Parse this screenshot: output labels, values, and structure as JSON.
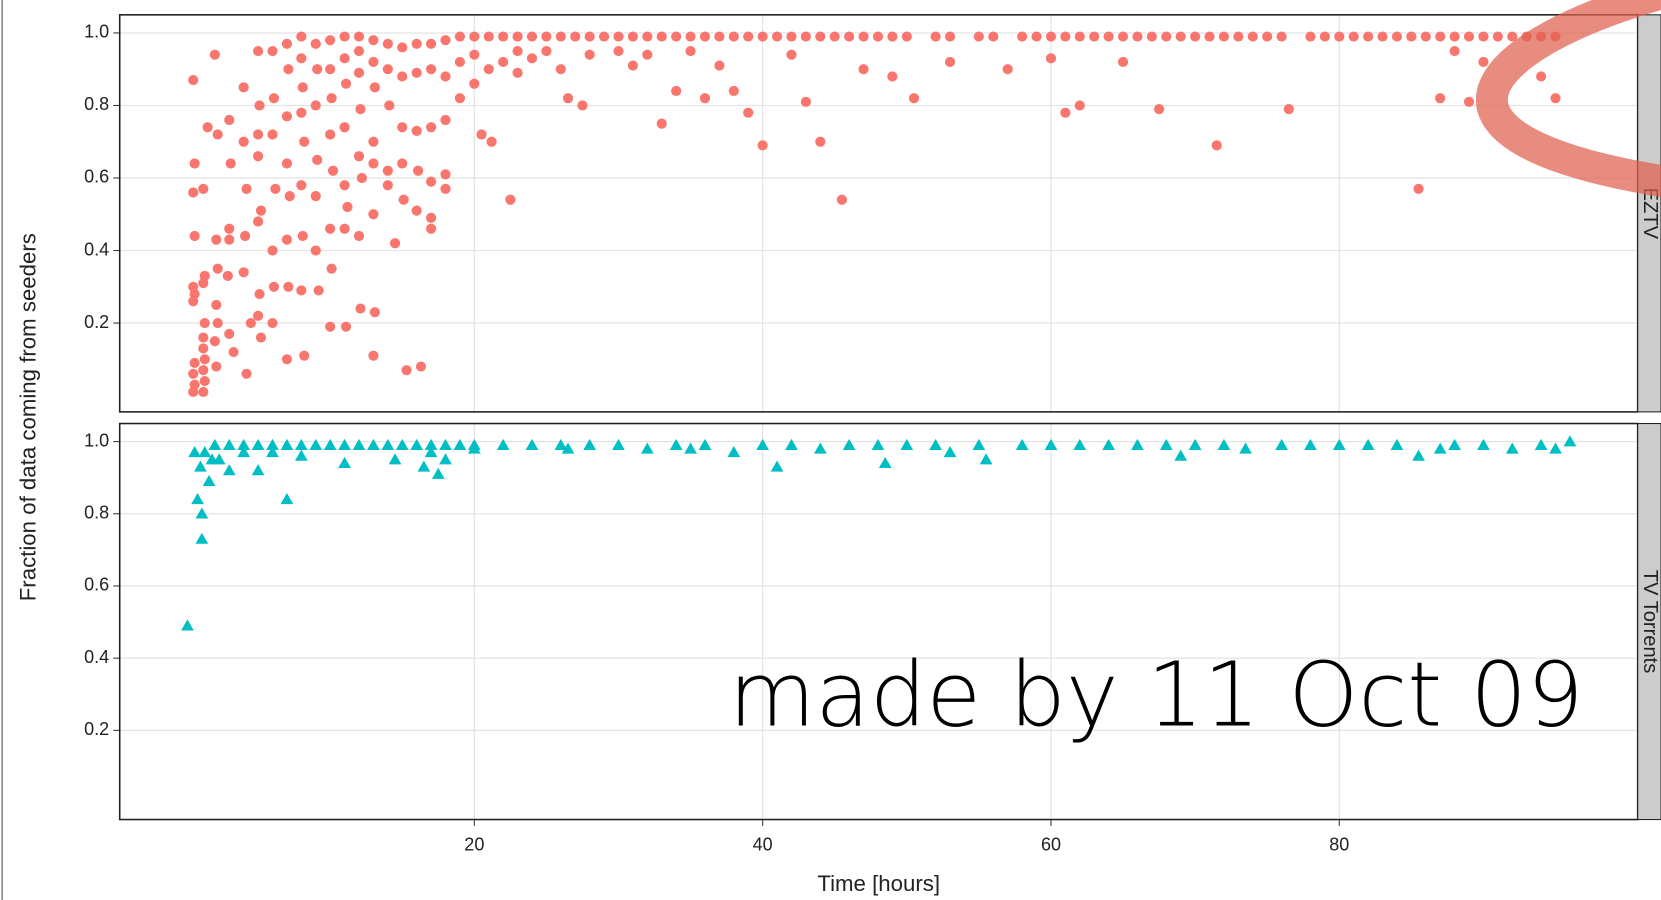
{
  "chart_data": [
    {
      "type": "scatter",
      "panel_label": "EZTV",
      "ylabel": "Fraction of data coming from seeders",
      "marker": "circle",
      "color": "#F8766D",
      "ylim": [
        -0.045,
        1.05
      ],
      "yticks": [
        0.2,
        0.4,
        0.6,
        0.8,
        {
          "value": 1,
          "label": "1.0"
        }
      ],
      "grid": true,
      "x": [
        0.5,
        0.6,
        0.5,
        0.6,
        0.5,
        0.6,
        0.5,
        0.6,
        0.5,
        0.6,
        0.5,
        1.2,
        1.3,
        1.2,
        1.3,
        1.2,
        1.2,
        1.3,
        1.2,
        1.3,
        1.2,
        1.5,
        2,
        2.2,
        2.1,
        2.2,
        2.1,
        2.2,
        2,
        2.1,
        3,
        3.1,
        3,
        3,
        2.9,
        3,
        3.3,
        4,
        4,
        4.2,
        4.1,
        4,
        4.2,
        4.5,
        5,
        5.1,
        5,
        5,
        5.2,
        5,
        5.1,
        5,
        5.2,
        6,
        6.1,
        6,
        6.2,
        6,
        6.1,
        6,
        7,
        7.1,
        7,
        7,
        7.2,
        7,
        7.1,
        7,
        8,
        8,
        8.1,
        8,
        8.2,
        8,
        8.1,
        8,
        8.2,
        9,
        9.1,
        9,
        9.1,
        9,
        9,
        9.2,
        10,
        10,
        10.1,
        10,
        10.2,
        10,
        10.1,
        10,
        11,
        11,
        11.1,
        11,
        11,
        11.2,
        11,
        11.1,
        12,
        12,
        12,
        12.1,
        12,
        12.2,
        12,
        12.1,
        13,
        13,
        13.1,
        13,
        13,
        13,
        13.1,
        13,
        14,
        14,
        14.1,
        14,
        14,
        14.5,
        15,
        15,
        15,
        15,
        15.1,
        15.3,
        16,
        16,
        16,
        16.1,
        16,
        16.3,
        17,
        17,
        17,
        17,
        17,
        17,
        18,
        18,
        18,
        18,
        18,
        19,
        19,
        19,
        20,
        20,
        20,
        20.5,
        21,
        21,
        21.2,
        22,
        22,
        22.5,
        23,
        23,
        23,
        24,
        24,
        25,
        25,
        26,
        26,
        26.5,
        27,
        27.5,
        28,
        28,
        29,
        30,
        30,
        31,
        31,
        32,
        32,
        33,
        33,
        34,
        34,
        35,
        35,
        36,
        36,
        37,
        37,
        38,
        38,
        39,
        39,
        40,
        40,
        41,
        42,
        42,
        43,
        43,
        44,
        44,
        45,
        45.5,
        46,
        47,
        47,
        48,
        49,
        49,
        50,
        50.5,
        52,
        53,
        53,
        55,
        56,
        57,
        58,
        59,
        60,
        60,
        61,
        61,
        62,
        62,
        63,
        64,
        65,
        65,
        66,
        67,
        67.5,
        68,
        69,
        70,
        71,
        71.5,
        72,
        73,
        74,
        75,
        76,
        76.5,
        78,
        79,
        80,
        81,
        82,
        83,
        84,
        85,
        85.5,
        86,
        87,
        87,
        88,
        88,
        89,
        89,
        90,
        90,
        91,
        92,
        93,
        94,
        94,
        95,
        95
      ],
      "values": [
        0.87,
        0.64,
        0.56,
        0.44,
        0.3,
        0.28,
        0.26,
        0.09,
        0.06,
        0.03,
        0.01,
        0.57,
        0.33,
        0.31,
        0.2,
        0.16,
        0.13,
        0.1,
        0.07,
        0.04,
        0.01,
        0.74,
        0.94,
        0.72,
        0.43,
        0.35,
        0.25,
        0.2,
        0.15,
        0.08,
        0.76,
        0.64,
        0.46,
        0.43,
        0.33,
        0.17,
        0.12,
        0.85,
        0.7,
        0.57,
        0.44,
        0.34,
        0.06,
        0.2,
        0.95,
        0.8,
        0.72,
        0.66,
        0.51,
        0.48,
        0.28,
        0.22,
        0.16,
        0.95,
        0.82,
        0.72,
        0.57,
        0.4,
        0.3,
        0.2,
        0.97,
        0.9,
        0.77,
        0.64,
        0.55,
        0.43,
        0.3,
        0.1,
        0.99,
        0.93,
        0.85,
        0.78,
        0.7,
        0.58,
        0.44,
        0.29,
        0.11,
        0.97,
        0.9,
        0.8,
        0.65,
        0.55,
        0.4,
        0.29,
        0.98,
        0.9,
        0.82,
        0.72,
        0.62,
        0.46,
        0.35,
        0.19,
        0.99,
        0.93,
        0.86,
        0.74,
        0.58,
        0.52,
        0.46,
        0.19,
        0.99,
        0.95,
        0.89,
        0.79,
        0.66,
        0.6,
        0.44,
        0.24,
        0.98,
        0.92,
        0.85,
        0.7,
        0.64,
        0.5,
        0.23,
        0.11,
        0.97,
        0.9,
        0.8,
        0.62,
        0.58,
        0.42,
        0.96,
        0.88,
        0.74,
        0.64,
        0.54,
        0.07,
        0.97,
        0.89,
        0.73,
        0.62,
        0.51,
        0.08,
        0.97,
        0.9,
        0.74,
        0.59,
        0.49,
        0.46,
        0.98,
        0.88,
        0.76,
        0.61,
        0.57,
        0.99,
        0.92,
        0.82,
        0.99,
        0.94,
        0.86,
        0.72,
        0.99,
        0.9,
        0.7,
        0.99,
        0.92,
        0.54,
        0.99,
        0.95,
        0.89,
        0.99,
        0.93,
        0.99,
        0.95,
        0.99,
        0.9,
        0.82,
        0.99,
        0.8,
        0.99,
        0.94,
        0.99,
        0.99,
        0.95,
        0.99,
        0.91,
        0.99,
        0.94,
        0.99,
        0.75,
        0.99,
        0.84,
        0.99,
        0.95,
        0.99,
        0.82,
        0.99,
        0.91,
        0.99,
        0.84,
        0.99,
        0.78,
        0.99,
        0.69,
        0.99,
        0.99,
        0.94,
        0.99,
        0.81,
        0.99,
        0.7,
        0.99,
        0.54,
        0.99,
        0.99,
        0.9,
        0.99,
        0.99,
        0.88,
        0.99,
        0.82,
        0.99,
        0.99,
        0.92,
        0.99,
        0.99,
        0.9,
        0.99,
        0.99,
        0.99,
        0.93,
        0.99,
        0.78,
        0.99,
        0.8,
        0.99,
        0.99,
        0.99,
        0.92,
        0.99,
        0.99,
        0.79,
        0.99,
        0.99,
        0.99,
        0.99,
        0.69,
        0.99,
        0.99,
        0.99,
        0.99,
        0.99,
        0.79,
        0.99,
        0.99,
        0.99,
        0.99,
        0.99,
        0.99,
        0.99,
        0.99,
        0.57,
        0.99,
        0.99,
        0.82,
        0.99,
        0.95,
        0.99,
        0.81,
        0.99,
        0.92,
        0.99,
        0.99,
        0.99,
        0.99,
        0.88,
        0.99,
        0.82
      ]
    },
    {
      "type": "scatter",
      "panel_label": "TV Torrents",
      "xlabel": "Time [hours]",
      "annotation": "made by 11 Oct 09",
      "marker": "triangle",
      "color": "#00BFC4",
      "xlim": [
        -4.6,
        100.7
      ],
      "xticks": [
        20,
        40,
        60,
        80
      ],
      "ylim": [
        -0.047,
        1.05
      ],
      "yticks": [
        0.2,
        0.4,
        0.6,
        0.8,
        {
          "value": 1,
          "label": "1.0"
        }
      ],
      "grid": true,
      "x": [
        0.1,
        0.6,
        0.8,
        1,
        1.1,
        1.1,
        1.3,
        1.6,
        1.8,
        2,
        2.3,
        3,
        3,
        4,
        4,
        5,
        5,
        6,
        6,
        7,
        7,
        8,
        8,
        9,
        10,
        11,
        11,
        12,
        13,
        14,
        14.5,
        15,
        16,
        16.5,
        17,
        17,
        17.5,
        18,
        18,
        19,
        20,
        20,
        22,
        24,
        26,
        26.5,
        28,
        30,
        32,
        34,
        35,
        36,
        38,
        40,
        41,
        42,
        44,
        46,
        48,
        48.5,
        50,
        52,
        53,
        55,
        55.5,
        58,
        60,
        62,
        64,
        66,
        68,
        69,
        70,
        72,
        73.5,
        76,
        78,
        80,
        82,
        84,
        85.5,
        87,
        88,
        90,
        92,
        94,
        95,
        96
      ],
      "values": [
        0.49,
        0.97,
        0.84,
        0.93,
        0.8,
        0.73,
        0.97,
        0.89,
        0.95,
        0.99,
        0.95,
        0.92,
        0.99,
        0.99,
        0.97,
        0.99,
        0.92,
        0.99,
        0.97,
        0.84,
        0.99,
        0.99,
        0.96,
        0.99,
        0.99,
        0.94,
        0.99,
        0.99,
        0.99,
        0.99,
        0.95,
        0.99,
        0.99,
        0.93,
        0.99,
        0.97,
        0.91,
        0.99,
        0.95,
        0.99,
        0.99,
        0.98,
        0.99,
        0.99,
        0.99,
        0.98,
        0.99,
        0.99,
        0.98,
        0.99,
        0.98,
        0.99,
        0.97,
        0.99,
        0.93,
        0.99,
        0.98,
        0.99,
        0.99,
        0.94,
        0.99,
        0.99,
        0.97,
        0.99,
        0.95,
        0.99,
        0.99,
        0.99,
        0.99,
        0.99,
        0.99,
        0.96,
        0.99,
        0.99,
        0.98,
        0.99,
        0.99,
        0.99,
        0.99,
        0.99,
        0.96,
        0.98,
        0.99,
        0.99,
        0.98,
        0.99,
        0.98,
        1.0
      ]
    }
  ]
}
